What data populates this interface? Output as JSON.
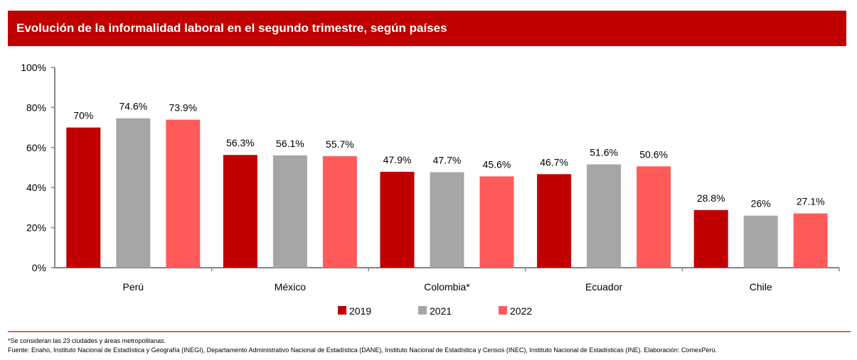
{
  "header": {
    "title": "Evolución de la informalidad laboral en el segundo trimestre, según países"
  },
  "chart_data": {
    "type": "bar",
    "title": "Evolución de la informalidad laboral en el segundo trimestre, según países",
    "categories": [
      "Perú",
      "México",
      "Colombia*",
      "Ecuador",
      "Chile"
    ],
    "series": [
      {
        "name": "2019",
        "color": "#C00000",
        "values": [
          70,
          56.3,
          47.9,
          46.7,
          28.8
        ],
        "labels": [
          "70%",
          "56.3%",
          "47.9%",
          "46.7%",
          "28.8%"
        ]
      },
      {
        "name": "2021",
        "color": "#A6A6A6",
        "values": [
          74.6,
          56.1,
          47.7,
          51.6,
          26
        ],
        "labels": [
          "74.6%",
          "56.1%",
          "47.7%",
          "51.6%",
          "26%"
        ]
      },
      {
        "name": "2022",
        "color": "#FF5B5B",
        "values": [
          73.9,
          55.7,
          45.6,
          50.6,
          27.1
        ],
        "labels": [
          "73.9%",
          "55.7%",
          "45.6%",
          "50.6%",
          "27.1%"
        ]
      }
    ],
    "yticks": [
      "0%",
      "20%",
      "40%",
      "60%",
      "80%",
      "100%"
    ],
    "ylim": [
      0,
      100
    ],
    "legend": "bottom",
    "grid": false
  },
  "footer": {
    "note": "*Se consideran las 23 ciudades y áreas metropolitanas.",
    "source": "Fuente: Enaho, Instituto Nacional de Estadística y Geografía (INEGI), Departamento Administrativo Nacional de Estadística (DANE), Instituto Nacional de Estadística y Censos (INEC), Instituto Nacional de Estadísticas (INE). Elaboración: ComexPerú."
  }
}
